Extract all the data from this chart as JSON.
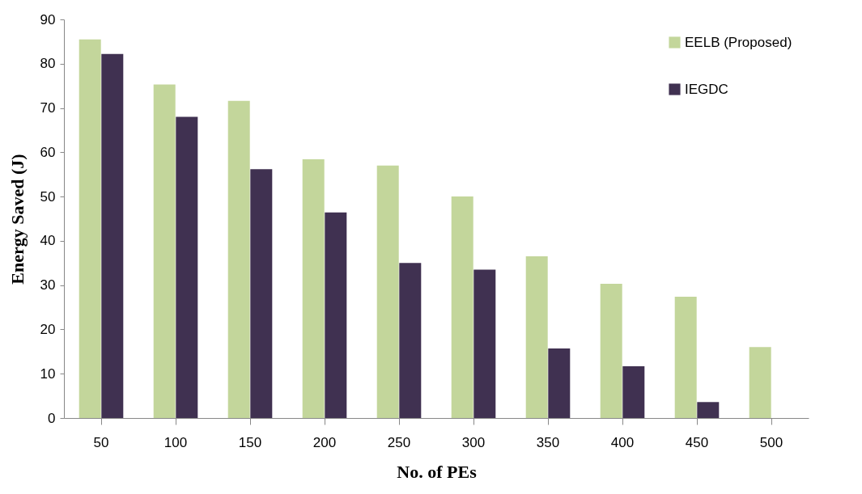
{
  "chart_data": {
    "type": "bar",
    "xlabel": "No. of PEs",
    "ylabel": "Energy  Saved (J)",
    "categories": [
      "50",
      "100",
      "150",
      "200",
      "250",
      "300",
      "350",
      "400",
      "450",
      "500"
    ],
    "series": [
      {
        "name": "EELB (Proposed)",
        "color": "#c3d69b",
        "values": [
          85.5,
          75.3,
          71.6,
          58.4,
          57,
          50,
          36.5,
          30.3,
          27.4,
          16
        ]
      },
      {
        "name": "IEGDC",
        "color": "#403151",
        "values": [
          82.2,
          68,
          56.2,
          46.4,
          35,
          33.5,
          15.7,
          11.7,
          3.6,
          null
        ]
      }
    ],
    "ylim": [
      0,
      90
    ],
    "yticks": [
      0,
      10,
      20,
      30,
      40,
      50,
      60,
      70,
      80,
      90
    ],
    "grid": false,
    "legend": "top right"
  }
}
